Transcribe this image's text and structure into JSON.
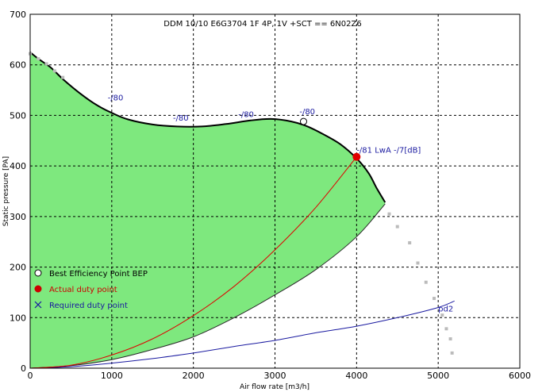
{
  "chart_data": {
    "type": "line",
    "title": "DDM 10/10 E6G3704 1F 4P, 1V +SCT == 6N02Z6",
    "xlabel": "Air flow rate [m3/h]",
    "ylabel": "Static pressure [PA]",
    "xlim": [
      0,
      6000
    ],
    "ylim": [
      0,
      700
    ],
    "xticks": [
      "0",
      "1000",
      "2000",
      "3000",
      "4000",
      "5000",
      "6000"
    ],
    "yticks": [
      "0",
      "100",
      "200",
      "300",
      "400",
      "500",
      "600",
      "700"
    ],
    "grid": true,
    "fan_curve": {
      "x": [
        0,
        100,
        250,
        400,
        600,
        800,
        1000,
        1200,
        1500,
        1800,
        2100,
        2400,
        2700,
        2950,
        3200,
        3400,
        3600,
        3800,
        4000,
        4150,
        4250,
        4350
      ],
      "y": [
        625,
        612,
        595,
        572,
        545,
        522,
        505,
        492,
        482,
        478,
        478,
        483,
        490,
        493,
        488,
        478,
        462,
        443,
        415,
        385,
        355,
        328
      ]
    },
    "min_curve": {
      "x": [
        0,
        500,
        1000,
        1500,
        2000,
        2500,
        3000,
        3500,
        4000,
        4350
      ],
      "y": [
        0,
        5,
        17,
        37,
        62,
        100,
        145,
        195,
        260,
        325
      ]
    },
    "square_points": {
      "x": [
        0,
        100,
        200,
        300,
        400,
        4400,
        4500,
        4650,
        4750,
        4850,
        4950,
        5050,
        5100,
        5150,
        5170
      ],
      "y": [
        622,
        612,
        602,
        588,
        575,
        305,
        280,
        248,
        208,
        170,
        138,
        105,
        78,
        58,
        30
      ]
    },
    "system_curve": {
      "x": [
        0,
        500,
        1000,
        1500,
        2000,
        2500,
        3000,
        3500,
        4000
      ],
      "y": [
        0,
        6,
        26,
        58,
        104,
        162,
        234,
        318,
        418
      ]
    },
    "required_curve": {
      "x": [
        0,
        500,
        1000,
        1500,
        2000,
        2500,
        3000,
        3500,
        4000,
        4500,
        5000,
        5200
      ],
      "y": [
        0,
        3,
        10,
        19,
        30,
        43,
        55,
        70,
        83,
        100,
        120,
        133
      ]
    },
    "bep": {
      "x": 3350,
      "y": 488
    },
    "duty_point": {
      "x": 4000,
      "y": 418
    },
    "annotations": [
      {
        "text": "-/80",
        "x": 950,
        "y": 530
      },
      {
        "text": "-/80",
        "x": 1750,
        "y": 490
      },
      {
        "text": "-/80",
        "x": 2550,
        "y": 497
      },
      {
        "text": "-/80",
        "x": 3300,
        "y": 502
      },
      {
        "text": "-/81 LwA -/7[dB]",
        "x": 4000,
        "y": 426
      },
      {
        "text": "pd2",
        "x": 5000,
        "y": 112
      }
    ],
    "legend": {
      "position": "left",
      "entries": [
        {
          "label": "Best Efficiency Point BEP",
          "color": "#000000",
          "marker": "circle-open"
        },
        {
          "label": "Actual duty point",
          "color": "#cc0000",
          "marker": "circle-filled"
        },
        {
          "label": "Required duty point",
          "color": "#1a1aa0",
          "marker": "cross"
        }
      ]
    },
    "colors": {
      "area": "#7ee87e",
      "fan_curve": "#000000",
      "system_curve": "#e00000",
      "required_curve": "#1a1aa0",
      "square_points": "#bbbbbb",
      "grid": "#000000"
    }
  }
}
